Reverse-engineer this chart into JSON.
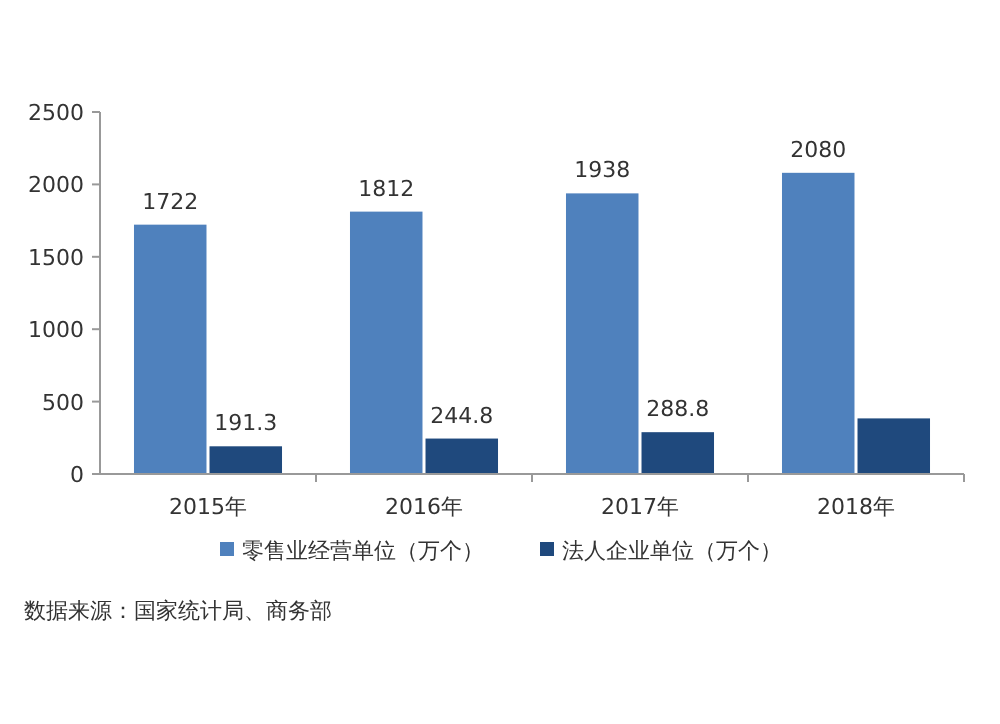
{
  "chart_data": {
    "type": "bar",
    "categories": [
      "2015年",
      "2016年",
      "2017年",
      "2018年"
    ],
    "series": [
      {
        "name": "零售业经营单位（万个）",
        "color": "#4f81bd",
        "values": [
          1722,
          1812,
          1938,
          2080
        ],
        "value_labels": [
          "1722",
          "1812",
          "1938",
          "2080"
        ]
      },
      {
        "name": "法人企业单位（万个）",
        "color": "#1f497d",
        "values": [
          191.3,
          244.8,
          288.8,
          384
        ],
        "value_labels": [
          "191.3",
          "244.8",
          "288.8",
          null
        ]
      }
    ],
    "ylim": [
      0,
      2500
    ],
    "yticks": [
      0,
      500,
      1000,
      1500,
      2000,
      2500
    ],
    "grid": false,
    "legend": "bottom",
    "annotations": [
      "数据来源：国家统计局、商务部"
    ]
  }
}
